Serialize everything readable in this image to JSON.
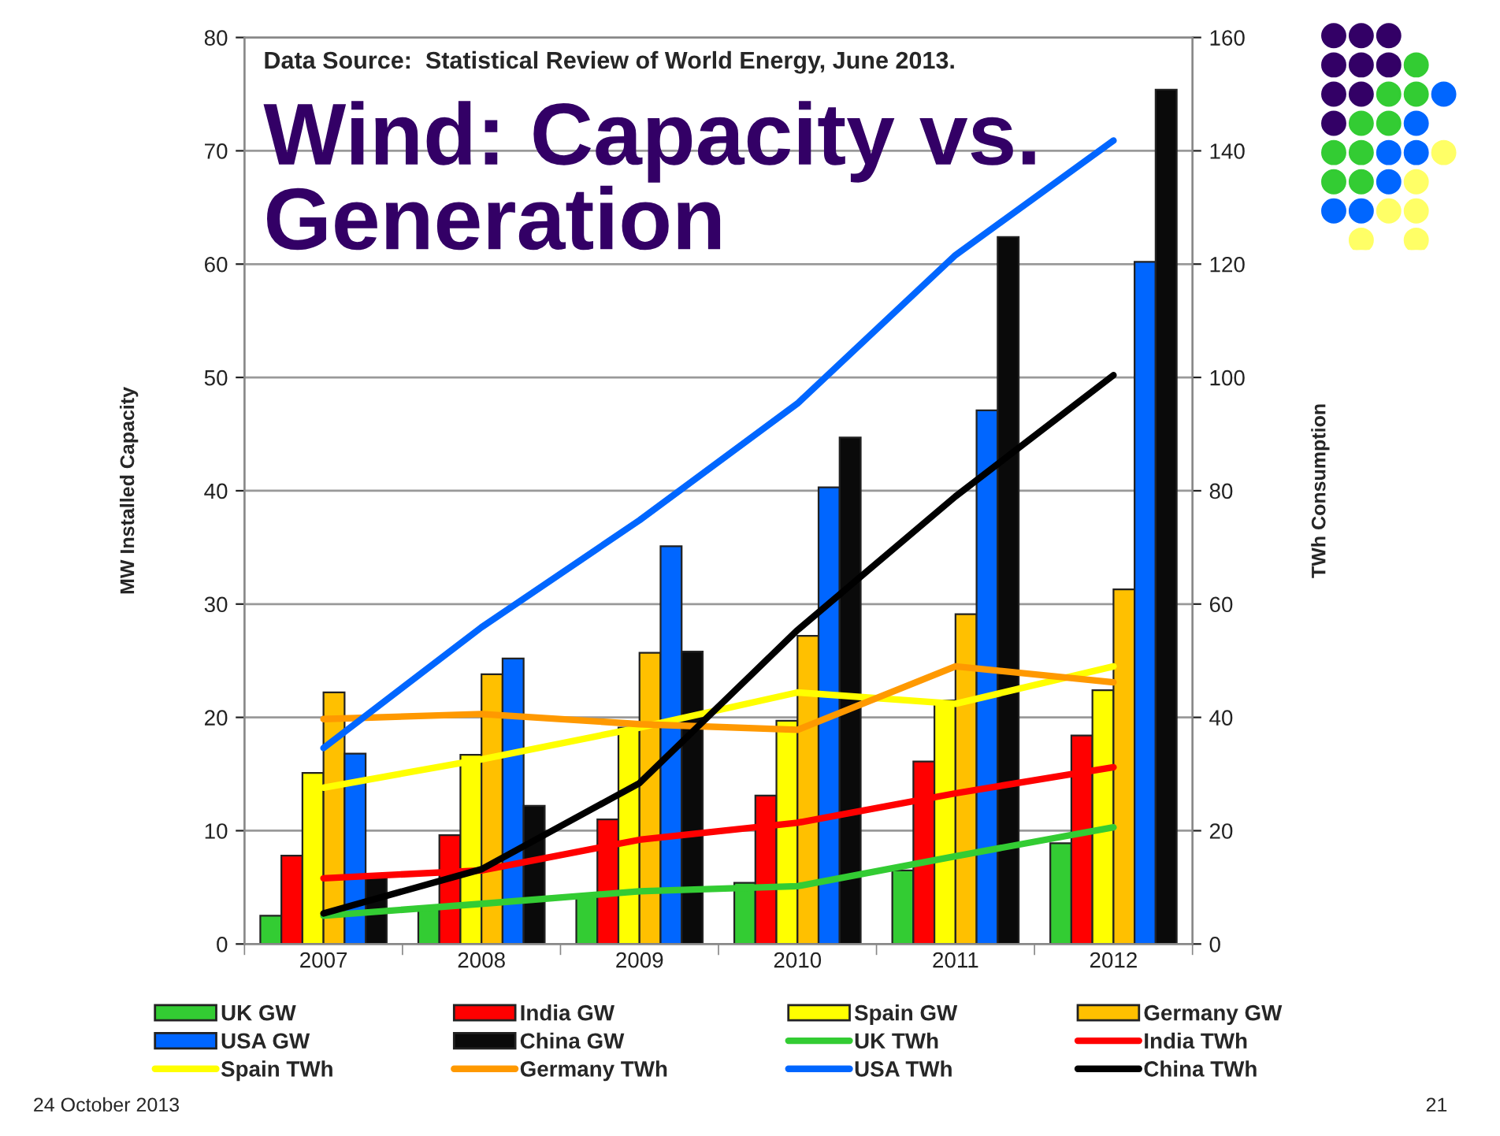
{
  "chart_data": {
    "type": "bar",
    "title": "Wind: Capacity vs.\nGeneration",
    "categories": [
      "2007",
      "2008",
      "2009",
      "2010",
      "2011",
      "2012"
    ],
    "ylabel": "MW Installed Capacity",
    "y2label": "TWh Consumption",
    "ylim": [
      0,
      80
    ],
    "yticks": [
      0,
      10,
      20,
      30,
      40,
      50,
      60,
      70,
      80
    ],
    "y2lim": [
      0,
      160
    ],
    "y2ticks": [
      0,
      20,
      40,
      60,
      80,
      100,
      120,
      140,
      160
    ],
    "grid": "y",
    "legend": "bottom",
    "series": [
      {
        "name": "UK GW",
        "color": "#33cc33",
        "values": [
          2.5,
          3.3,
          4.4,
          5.4,
          6.5,
          8.9
        ]
      },
      {
        "name": "India GW",
        "color": "#ff0000",
        "values": [
          7.8,
          9.6,
          11.0,
          13.1,
          16.1,
          18.4
        ]
      },
      {
        "name": "Spain GW",
        "color": "#ffff00",
        "values": [
          15.1,
          16.7,
          19.1,
          19.7,
          21.5,
          22.4
        ]
      },
      {
        "name": "Germany GW",
        "color": "#ffc000",
        "values": [
          22.2,
          23.8,
          25.7,
          27.2,
          29.1,
          31.3
        ]
      },
      {
        "name": "USA GW",
        "color": "#0066ff",
        "values": [
          16.8,
          25.2,
          35.1,
          40.3,
          47.1,
          60.2
        ]
      },
      {
        "name": "China GW",
        "color": "#0a0a0a",
        "values": [
          5.9,
          12.2,
          25.8,
          44.7,
          62.4,
          75.4
        ]
      },
      {
        "name": "UK TWh",
        "type": "line",
        "axis": "y2",
        "color": "#33cc33",
        "values": [
          5.0,
          7.1,
          9.3,
          10.2,
          15.5,
          20.6
        ]
      },
      {
        "name": "India TWh",
        "type": "line",
        "axis": "y2",
        "color": "#ff0000",
        "values": [
          11.6,
          13.0,
          18.4,
          21.4,
          26.6,
          31.2
        ]
      },
      {
        "name": "Spain TWh",
        "type": "line",
        "axis": "y2",
        "color": "#ffff00",
        "values": [
          27.6,
          32.6,
          38.2,
          44.4,
          42.4,
          49.0
        ]
      },
      {
        "name": "Germany TWh",
        "type": "line",
        "axis": "y2",
        "color": "#ff9900",
        "values": [
          39.7,
          40.6,
          38.8,
          37.8,
          49.0,
          46.2
        ]
      },
      {
        "name": "USA TWh",
        "type": "line",
        "axis": "y2",
        "color": "#0066ff",
        "values": [
          34.6,
          55.9,
          74.8,
          95.4,
          121.6,
          141.8
        ]
      },
      {
        "name": "China TWh",
        "type": "line",
        "axis": "y2",
        "color": "#000000",
        "values": [
          5.4,
          13.2,
          28.4,
          55.4,
          79.0,
          100.4
        ]
      }
    ],
    "annotations": [
      "Data Source:  Statistical Review of World Energy, June 2013.",
      "24 October 2013",
      "21"
    ]
  }
}
